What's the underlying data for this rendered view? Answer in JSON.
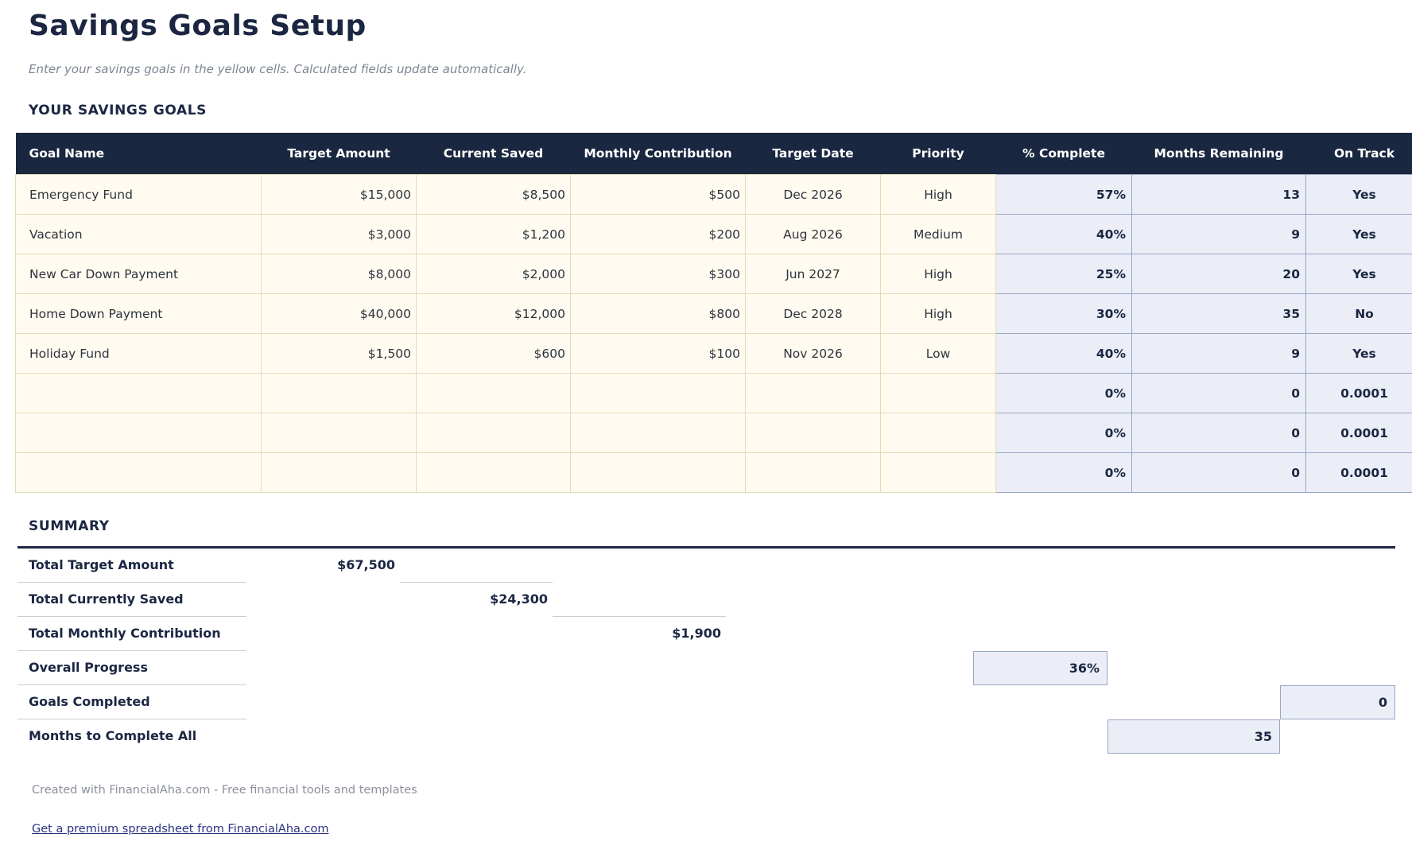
{
  "page": {
    "title": "Savings Goals Setup",
    "subtitle": "Enter your savings goals in the yellow cells. Calculated fields update automatically."
  },
  "goals_section": {
    "heading": "YOUR SAVINGS GOALS",
    "columns": [
      "Goal Name",
      "Target Amount",
      "Current Saved",
      "Monthly Contribution",
      "Target Date",
      "Priority",
      "% Complete",
      "Months Remaining",
      "On Track"
    ],
    "rows": [
      {
        "goal_name": "Emergency Fund",
        "target_amount": "$15,000",
        "current_saved": "$8,500",
        "monthly_contribution": "$500",
        "target_date": "Dec 2026",
        "priority": "High",
        "pct_complete": "57%",
        "months_remaining": "13",
        "on_track": "Yes"
      },
      {
        "goal_name": "Vacation",
        "target_amount": "$3,000",
        "current_saved": "$1,200",
        "monthly_contribution": "$200",
        "target_date": "Aug 2026",
        "priority": "Medium",
        "pct_complete": "40%",
        "months_remaining": "9",
        "on_track": "Yes"
      },
      {
        "goal_name": "New Car Down Payment",
        "target_amount": "$8,000",
        "current_saved": "$2,000",
        "monthly_contribution": "$300",
        "target_date": "Jun 2027",
        "priority": "High",
        "pct_complete": "25%",
        "months_remaining": "20",
        "on_track": "Yes"
      },
      {
        "goal_name": "Home Down Payment",
        "target_amount": "$40,000",
        "current_saved": "$12,000",
        "monthly_contribution": "$800",
        "target_date": "Dec 2028",
        "priority": "High",
        "pct_complete": "30%",
        "months_remaining": "35",
        "on_track": "No"
      },
      {
        "goal_name": "Holiday Fund",
        "target_amount": "$1,500",
        "current_saved": "$600",
        "monthly_contribution": "$100",
        "target_date": "Nov 2026",
        "priority": "Low",
        "pct_complete": "40%",
        "months_remaining": "9",
        "on_track": "Yes"
      },
      {
        "goal_name": "",
        "target_amount": "",
        "current_saved": "",
        "monthly_contribution": "",
        "target_date": "",
        "priority": "",
        "pct_complete": "0%",
        "months_remaining": "0",
        "on_track": "0.0001"
      },
      {
        "goal_name": "",
        "target_amount": "",
        "current_saved": "",
        "monthly_contribution": "",
        "target_date": "",
        "priority": "",
        "pct_complete": "0%",
        "months_remaining": "0",
        "on_track": "0.0001"
      },
      {
        "goal_name": "",
        "target_amount": "",
        "current_saved": "",
        "monthly_contribution": "",
        "target_date": "",
        "priority": "",
        "pct_complete": "0%",
        "months_remaining": "0",
        "on_track": "0.0001"
      }
    ]
  },
  "summary_section": {
    "heading": "SUMMARY",
    "rows": [
      {
        "label": "Total Target Amount",
        "value": "$67,500",
        "column": "Target Amount",
        "highlighted": false
      },
      {
        "label": "Total Currently Saved",
        "value": "$24,300",
        "column": "Current Saved",
        "highlighted": false
      },
      {
        "label": "Total Monthly Contribution",
        "value": "$1,900",
        "column": "Monthly Contribution",
        "highlighted": false
      },
      {
        "label": "Overall Progress",
        "value": "36%",
        "column": "% Complete",
        "highlighted": true
      },
      {
        "label": "Goals Completed",
        "value": "0",
        "column": "On Track",
        "highlighted": true
      },
      {
        "label": "Months to Complete All",
        "value": "35",
        "column": "Months Remaining",
        "highlighted": true
      }
    ]
  },
  "footer": {
    "credit": "Created with FinancialAha.com - Free financial tools and templates",
    "link_label": "Get a premium spreadsheet from FinancialAha.com"
  },
  "colors": {
    "header_bg": "#1a2740",
    "navy_text": "#1b2742",
    "input_cell_bg": "#fffbf0",
    "input_cell_border": "#e3dbb6",
    "calc_cell_bg": "#ebeef7",
    "calc_cell_border": "#9ba6c2"
  }
}
